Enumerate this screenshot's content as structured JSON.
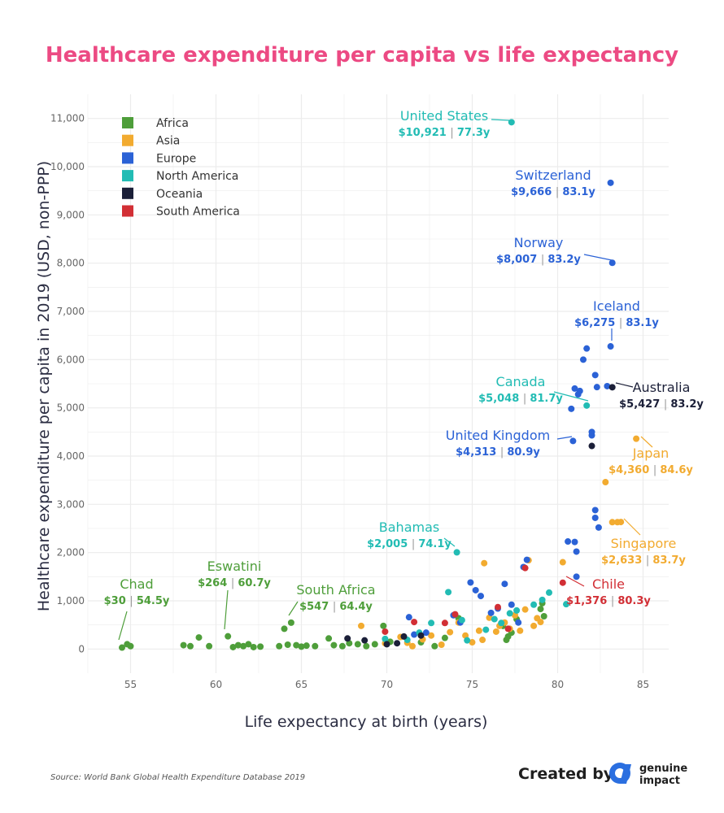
{
  "title": "Healthcare expenditure per capita vs life expectancy",
  "colors": {
    "title": "#ec4a83",
    "Africa": "#4e9e3a",
    "Asia": "#f2ab30",
    "Europe": "#2b62d6",
    "North America": "#22bcb4",
    "Oceania": "#1b1f38",
    "South America": "#d22f35",
    "grid": "#ececec"
  },
  "chart_data": {
    "type": "scatter",
    "title": "Healthcare expenditure per capita vs life expectancy",
    "xlabel": "Life expectancy at birth (years)",
    "ylabel": "Healthcare expenditure per capita in 2019 (USD, non-PPP)",
    "xlim": [
      52.5,
      86.5
    ],
    "ylim": [
      -500,
      11500
    ],
    "xticks": [
      55,
      60,
      65,
      70,
      75,
      80,
      85
    ],
    "yticks": [
      0,
      1000,
      2000,
      3000,
      4000,
      5000,
      6000,
      7000,
      8000,
      9000,
      10000,
      11000
    ],
    "ytick_labels": [
      "0",
      "1,000",
      "2,000",
      "3,000",
      "4,000",
      "5,000",
      "6,000",
      "7,000",
      "8,000",
      "9,000",
      "10,000",
      "11,000"
    ],
    "legend": [
      "Africa",
      "Asia",
      "Europe",
      "North America",
      "Oceania",
      "South America"
    ],
    "legend_position": "top-left",
    "series": [
      {
        "name": "Africa",
        "points": [
          [
            54.5,
            30
          ],
          [
            54.8,
            100
          ],
          [
            55.0,
            60
          ],
          [
            58.1,
            80
          ],
          [
            58.5,
            60
          ],
          [
            59.0,
            240
          ],
          [
            59.6,
            60
          ],
          [
            60.7,
            264
          ],
          [
            61.0,
            40
          ],
          [
            61.3,
            80
          ],
          [
            61.6,
            60
          ],
          [
            61.9,
            100
          ],
          [
            62.2,
            40
          ],
          [
            62.6,
            50
          ],
          [
            63.7,
            60
          ],
          [
            64.0,
            420
          ],
          [
            64.2,
            90
          ],
          [
            64.4,
            547
          ],
          [
            64.7,
            80
          ],
          [
            65.0,
            50
          ],
          [
            65.3,
            70
          ],
          [
            65.8,
            60
          ],
          [
            66.6,
            220
          ],
          [
            66.9,
            80
          ],
          [
            67.4,
            60
          ],
          [
            67.8,
            120
          ],
          [
            68.3,
            100
          ],
          [
            68.8,
            60
          ],
          [
            69.3,
            100
          ],
          [
            69.8,
            480
          ],
          [
            70.2,
            150
          ],
          [
            72.0,
            140
          ],
          [
            72.8,
            60
          ],
          [
            73.4,
            230
          ],
          [
            74.2,
            640
          ],
          [
            77.0,
            190
          ],
          [
            77.1,
            260
          ],
          [
            77.3,
            340
          ],
          [
            79.0,
            830
          ],
          [
            79.2,
            680
          ],
          [
            79.1,
            950
          ],
          [
            76.8,
            480
          ],
          [
            77.6,
            620
          ]
        ]
      },
      {
        "name": "Asia",
        "points": [
          [
            68.5,
            480
          ],
          [
            69.9,
            120
          ],
          [
            70.8,
            250
          ],
          [
            71.2,
            130
          ],
          [
            71.5,
            60
          ],
          [
            72.1,
            200
          ],
          [
            72.6,
            280
          ],
          [
            73.2,
            90
          ],
          [
            73.7,
            350
          ],
          [
            74.2,
            550
          ],
          [
            74.6,
            280
          ],
          [
            75.0,
            140
          ],
          [
            75.4,
            380
          ],
          [
            75.6,
            190
          ],
          [
            75.7,
            1780
          ],
          [
            76.0,
            650
          ],
          [
            76.4,
            360
          ],
          [
            76.6,
            480
          ],
          [
            76.9,
            550
          ],
          [
            77.2,
            420
          ],
          [
            77.5,
            700
          ],
          [
            77.8,
            380
          ],
          [
            78.1,
            820
          ],
          [
            78.3,
            1840
          ],
          [
            78.6,
            480
          ],
          [
            78.8,
            640
          ],
          [
            79.0,
            560
          ],
          [
            80.3,
            1800
          ],
          [
            82.8,
            3460
          ],
          [
            83.2,
            2630
          ],
          [
            83.5,
            2630
          ],
          [
            83.7,
            2633
          ],
          [
            84.6,
            4360
          ]
        ]
      },
      {
        "name": "Europe",
        "points": [
          [
            71.3,
            660
          ],
          [
            71.6,
            300
          ],
          [
            72.3,
            340
          ],
          [
            73.9,
            700
          ],
          [
            74.3,
            550
          ],
          [
            74.9,
            1380
          ],
          [
            75.2,
            1220
          ],
          [
            75.5,
            1100
          ],
          [
            76.1,
            750
          ],
          [
            76.5,
            840
          ],
          [
            76.9,
            1350
          ],
          [
            77.3,
            920
          ],
          [
            77.7,
            550
          ],
          [
            78.0,
            1700
          ],
          [
            78.2,
            1850
          ],
          [
            80.6,
            2230
          ],
          [
            80.9,
            4313
          ],
          [
            81.0,
            2220
          ],
          [
            81.1,
            2020
          ],
          [
            81.1,
            1500
          ],
          [
            81.0,
            5400
          ],
          [
            81.2,
            5280
          ],
          [
            81.3,
            5350
          ],
          [
            81.5,
            6000
          ],
          [
            81.7,
            6230
          ],
          [
            80.8,
            4980
          ],
          [
            82.0,
            4430
          ],
          [
            82.0,
            4500
          ],
          [
            82.2,
            5680
          ],
          [
            82.4,
            2520
          ],
          [
            82.2,
            2720
          ],
          [
            82.2,
            2880
          ],
          [
            83.1,
            6275
          ],
          [
            83.1,
            9666
          ],
          [
            83.2,
            8007
          ],
          [
            82.9,
            5450
          ],
          [
            82.3,
            5430
          ]
        ]
      },
      {
        "name": "North America",
        "points": [
          [
            69.9,
            210
          ],
          [
            71.2,
            190
          ],
          [
            71.9,
            340
          ],
          [
            72.6,
            540
          ],
          [
            73.6,
            1180
          ],
          [
            74.1,
            2005
          ],
          [
            74.4,
            600
          ],
          [
            74.7,
            180
          ],
          [
            75.8,
            400
          ],
          [
            76.3,
            620
          ],
          [
            76.7,
            540
          ],
          [
            77.2,
            740
          ],
          [
            77.3,
            10921
          ],
          [
            77.6,
            800
          ],
          [
            78.6,
            920
          ],
          [
            79.1,
            1020
          ],
          [
            79.5,
            1170
          ],
          [
            80.5,
            930
          ],
          [
            81.7,
            5048
          ]
        ]
      },
      {
        "name": "Oceania",
        "points": [
          [
            67.7,
            220
          ],
          [
            68.7,
            180
          ],
          [
            70.0,
            100
          ],
          [
            70.6,
            120
          ],
          [
            71.0,
            260
          ],
          [
            72.0,
            280
          ],
          [
            82.0,
            4210
          ],
          [
            83.2,
            5427
          ]
        ]
      },
      {
        "name": "South America",
        "points": [
          [
            69.9,
            360
          ],
          [
            71.6,
            560
          ],
          [
            73.4,
            540
          ],
          [
            74.0,
            720
          ],
          [
            76.5,
            870
          ],
          [
            77.1,
            420
          ],
          [
            78.1,
            1680
          ],
          [
            80.3,
            1376
          ]
        ]
      }
    ],
    "annotations": [
      {
        "country": "United States",
        "value": "$10,921",
        "life": "77.3y",
        "region": "North America"
      },
      {
        "country": "Switzerland",
        "value": "$9,666",
        "life": "83.1y",
        "region": "Europe"
      },
      {
        "country": "Norway",
        "value": "$8,007",
        "life": "83.2y",
        "region": "Europe"
      },
      {
        "country": "Iceland",
        "value": "$6,275",
        "life": "83.1y",
        "region": "Europe"
      },
      {
        "country": "Canada",
        "value": "$5,048",
        "life": "81.7y",
        "region": "North America"
      },
      {
        "country": "Australia",
        "value": "$5,427",
        "life": "83.2y",
        "region": "Oceania"
      },
      {
        "country": "United Kingdom",
        "value": "$4,313",
        "life": "80.9y",
        "region": "Europe"
      },
      {
        "country": "Japan",
        "value": "$4,360",
        "life": "84.6y",
        "region": "Asia"
      },
      {
        "country": "Bahamas",
        "value": "$2,005",
        "life": "74.1y",
        "region": "North America"
      },
      {
        "country": "Singapore",
        "value": "$2,633",
        "life": "83.7y",
        "region": "Asia"
      },
      {
        "country": "Chile",
        "value": "$1,376",
        "life": "80.3y",
        "region": "South America"
      },
      {
        "country": "Eswatini",
        "value": "$264",
        "life": "60.7y",
        "region": "Africa"
      },
      {
        "country": "Chad",
        "value": "$30",
        "life": "54.5y",
        "region": "Africa"
      },
      {
        "country": "South Africa",
        "value": "$547",
        "life": "64.4y",
        "region": "Africa"
      }
    ]
  },
  "footer": {
    "source": "Source: World Bank Global Health Expenditure Database 2019",
    "created_by": "Created by",
    "brand_line1": "genuine",
    "brand_line2": "impact"
  }
}
